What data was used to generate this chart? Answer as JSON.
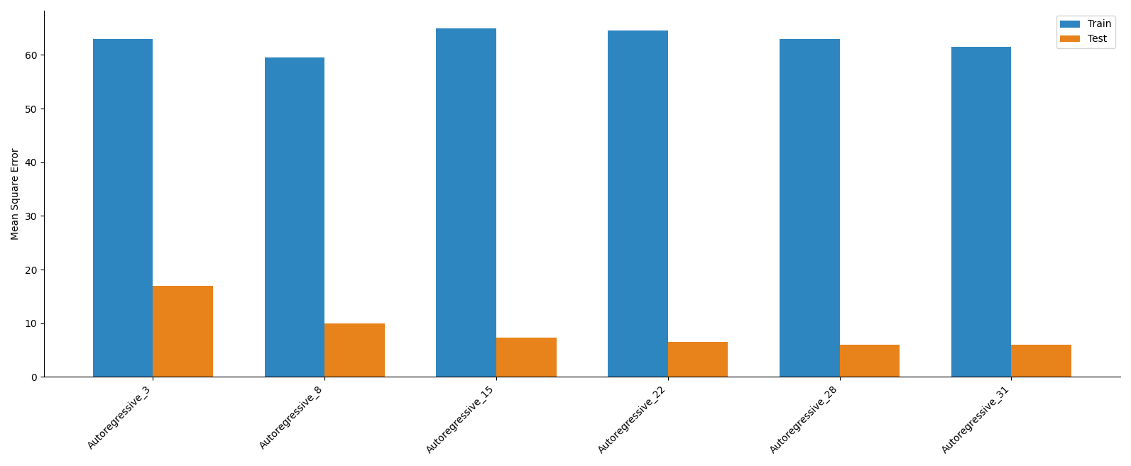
{
  "categories": [
    "Autoregressive_3",
    "Autoregressive_8",
    "Autoregressive_15",
    "Autoregressive_22",
    "Autoregressive_28",
    "Autoregressive_31"
  ],
  "train_values": [
    63.0,
    59.5,
    65.0,
    64.5,
    63.0,
    61.5
  ],
  "test_values": [
    17.0,
    10.0,
    7.3,
    6.5,
    6.0,
    6.0
  ],
  "train_color": "#2E86C1",
  "test_color": "#E8821A",
  "ylabel": "Mean Square Error",
  "legend_labels": [
    "Train",
    "Test"
  ],
  "bar_width": 0.35,
  "figsize": [
    15.93,
    6.57
  ],
  "dpi": 100
}
